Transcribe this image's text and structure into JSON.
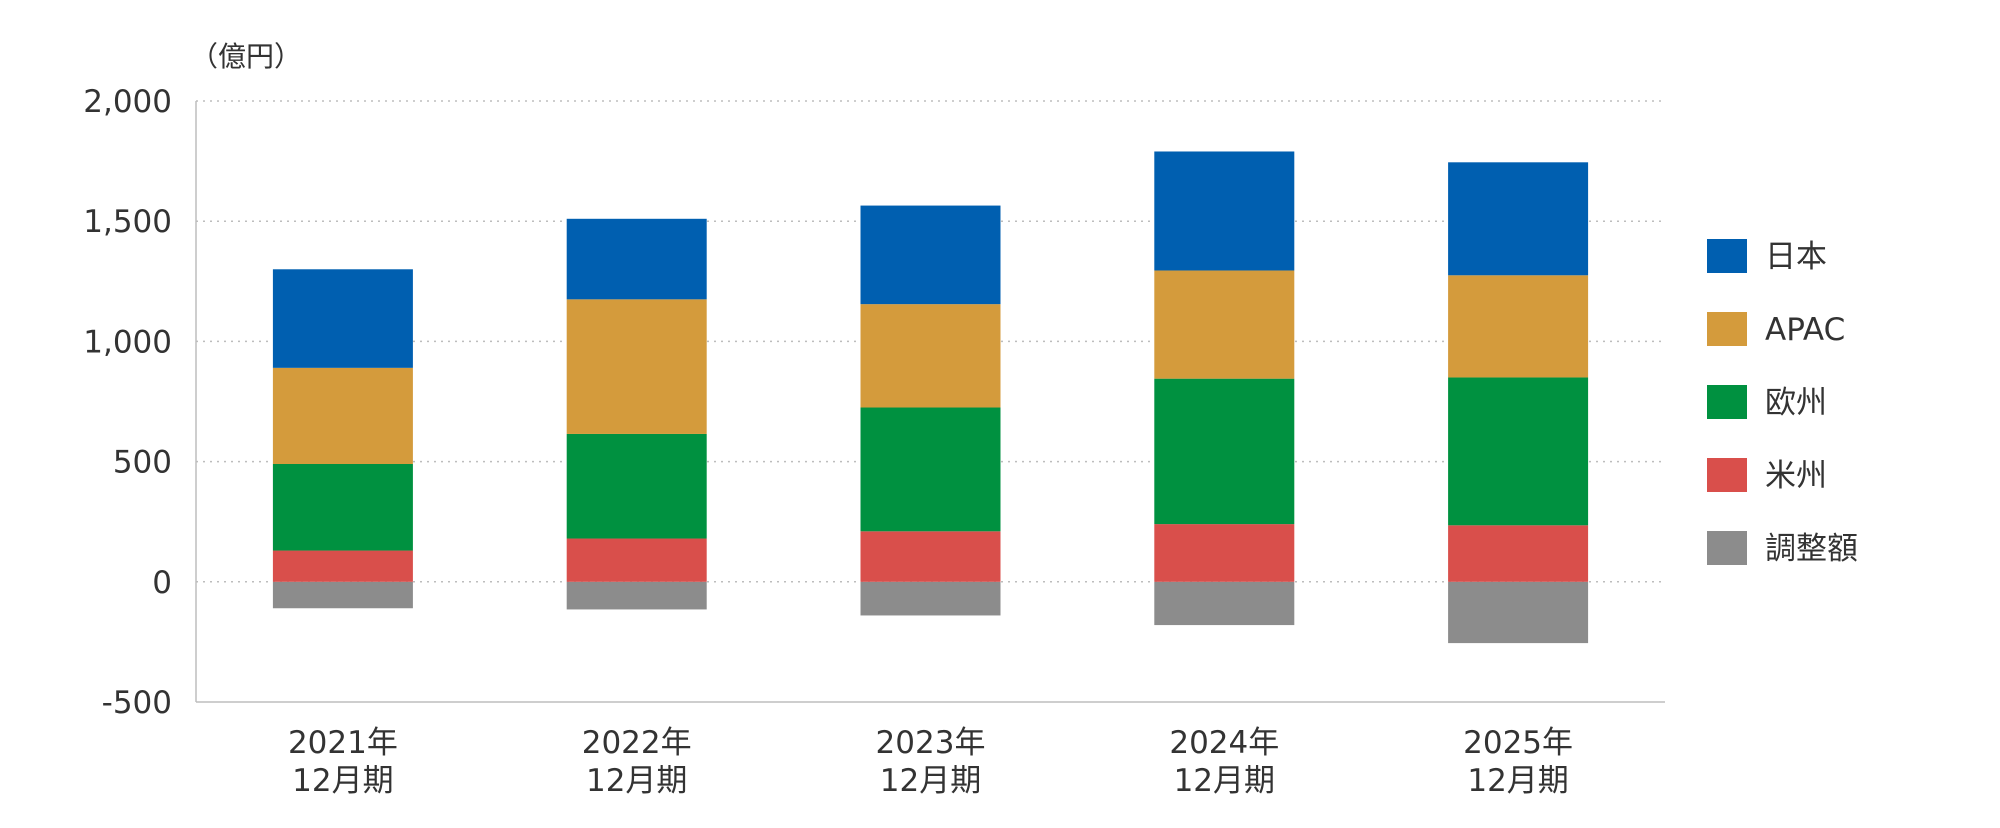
{
  "chart_data": {
    "type": "bar",
    "stacked": true,
    "unit_label": "（億円）",
    "categories": [
      [
        "2021年",
        "12月期"
      ],
      [
        "2022年",
        "12月期"
      ],
      [
        "2023年",
        "12月期"
      ],
      [
        "2024年",
        "12月期"
      ],
      [
        "2025年",
        "12月期"
      ]
    ],
    "yticks": [
      "2,000",
      "1,500",
      "1,000",
      "500",
      "0",
      "-500"
    ],
    "ylim": [
      -500,
      2000
    ],
    "grid": "dotted",
    "legend_position": "right",
    "series": [
      {
        "name": "調整額",
        "color": "#8c8c8c",
        "values": [
          -110,
          -115,
          -140,
          -180,
          -255
        ]
      },
      {
        "name": "米州",
        "color": "#d94f4b",
        "values": [
          130,
          180,
          210,
          240,
          235
        ]
      },
      {
        "name": "欧州",
        "color": "#009140",
        "values": [
          360,
          435,
          515,
          605,
          615
        ]
      },
      {
        "name": "APAC",
        "color": "#d49b3c",
        "values": [
          400,
          560,
          430,
          450,
          425
        ]
      },
      {
        "name": "日本",
        "color": "#005fb0",
        "values": [
          410,
          335,
          410,
          495,
          470
        ]
      }
    ],
    "legend_order": [
      "日本",
      "APAC",
      "欧州",
      "米州",
      "調整額"
    ]
  }
}
